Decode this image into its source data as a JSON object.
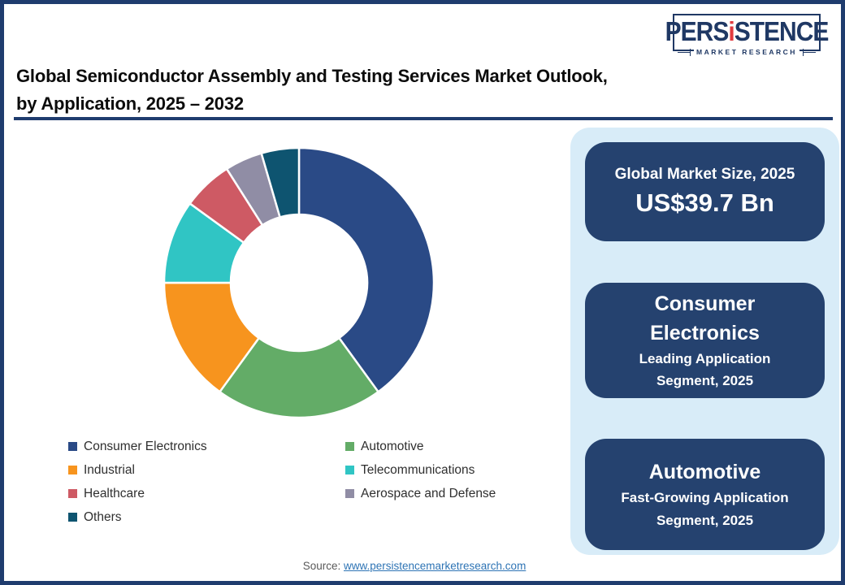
{
  "logo": {
    "wordmark_pre": "PERS",
    "wordmark_i": "i",
    "wordmark_post": "STENCE",
    "tagline": "MARKET RESEARCH",
    "navy": "#1F3864",
    "red": "#E23B3F"
  },
  "header": {
    "title_line1": "Global Semiconductor Assembly and Testing Services Market Outlook,",
    "title_line2": "by Application, 2025 – 2032"
  },
  "chart_data": {
    "type": "pie",
    "subtype": "donut",
    "title": "Global Semiconductor Assembly and Testing Services Market Outlook, by Application, 2025 – 2032",
    "unit": "% share (estimated from arc angles, no data labels shown)",
    "start_angle_deg": 0,
    "direction": "clockwise",
    "inner_radius_ratio": 0.5,
    "legend_position": "bottom",
    "series": [
      {
        "name": "Consumer Electronics",
        "value": 40,
        "color": "#2A4A86"
      },
      {
        "name": "Automotive",
        "value": 20,
        "color": "#63AC67"
      },
      {
        "name": "Industrial",
        "value": 15,
        "color": "#F7941E"
      },
      {
        "name": "Telecommunications",
        "value": 10,
        "color": "#30C5C4"
      },
      {
        "name": "Healthcare",
        "value": 6,
        "color": "#CE5A64"
      },
      {
        "name": "Aerospace and Defense",
        "value": 4.5,
        "color": "#908DA5"
      },
      {
        "name": "Others",
        "value": 4.5,
        "color": "#0E5470"
      }
    ]
  },
  "highlights": {
    "cards": [
      {
        "line1": "Global Market Size, 2025",
        "line2": "US$39.7 Bn"
      },
      {
        "line1": "Consumer Electronics",
        "line2": "Leading Application Segment, 2025"
      },
      {
        "line1": "Automotive",
        "line2": "Fast-Growing Application Segment, 2025"
      }
    ],
    "panel_bg": "#D8ECF8",
    "card_bg": "#25426F"
  },
  "source": {
    "label": "Source:",
    "link": "www.persistencemarketresearch.com"
  }
}
